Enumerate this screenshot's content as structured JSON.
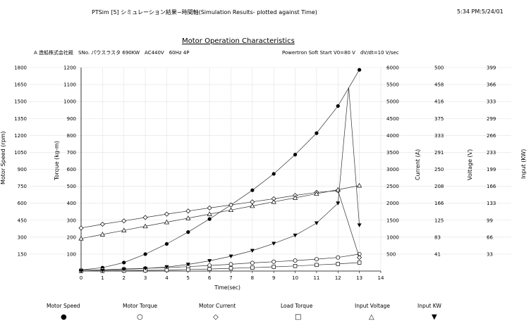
{
  "header": {
    "left": "PTSim [5] シミュレーション結果−時間軸(Simulation Results- plotted against Time)",
    "right": "5:34 PM:5/24/01"
  },
  "chart_data": {
    "type": "line",
    "title": "Motor Operation Characteristics",
    "subtitle_left": "A 造船株式会社殿　SNo. パウスラスタ 690KW　AC440V　60Hz 4P",
    "subtitle_right": "Powertron Soft Start V0=80 V　dV/dt=10 V/sec",
    "xlabel": "Time(sec)",
    "x_ticks": [
      "0",
      "1",
      "2",
      "3",
      "4",
      "5",
      "6",
      "7",
      "8",
      "9",
      "10",
      "11",
      "12",
      "13",
      "14"
    ],
    "xlim": [
      0,
      14
    ],
    "axes": [
      {
        "label": "Motor Speed (rpm)",
        "ticks": [
          "150",
          "300",
          "450",
          "600",
          "750",
          "900",
          "1050",
          "1200",
          "1350",
          "1500",
          "1650",
          "1800"
        ]
      },
      {
        "label": "Torque (kg-m)",
        "ticks": [
          "100",
          "200",
          "300",
          "400",
          "500",
          "600",
          "700",
          "800",
          "900",
          "1000",
          "1100",
          "1200"
        ]
      },
      {
        "label": "Current (A)",
        "ticks": [
          "500",
          "1000",
          "1500",
          "2000",
          "2500",
          "3000",
          "3500",
          "4000",
          "4500",
          "5000",
          "5500",
          "6000"
        ]
      },
      {
        "label": "Voltage (V)",
        "ticks": [
          "41",
          "83",
          "125",
          "166",
          "208",
          "250",
          "291",
          "333",
          "375",
          "416",
          "458",
          "500"
        ]
      },
      {
        "label": "Input (KW)",
        "ticks": [
          "33",
          "66",
          "99",
          "133",
          "166",
          "199",
          "233",
          "266",
          "299",
          "333",
          "366",
          "399"
        ]
      }
    ],
    "series": [
      {
        "name": "Motor Speed",
        "symbol": "●",
        "axis": "Motor Speed (rpm)",
        "x": [
          0,
          1,
          2,
          3,
          4,
          5,
          6,
          7,
          8,
          9,
          10,
          11,
          12,
          13
        ],
        "y": [
          10,
          30,
          75,
          150,
          240,
          345,
          460,
          585,
          715,
          860,
          1030,
          1220,
          1460,
          1780
        ]
      },
      {
        "name": "Motor Torque",
        "symbol": "○",
        "axis": "Torque (kg-m)",
        "x": [
          0,
          1,
          2,
          3,
          4,
          5,
          6,
          7,
          8,
          9,
          10,
          11,
          12,
          13
        ],
        "y": [
          5,
          8,
          12,
          16,
          20,
          26,
          33,
          40,
          48,
          55,
          62,
          70,
          80,
          100
        ]
      },
      {
        "name": "Motor Current",
        "symbol": "◇",
        "axis": "Current (A)",
        "x": [
          0,
          1,
          2,
          3,
          4,
          5,
          6,
          7,
          8,
          9,
          10,
          11,
          12,
          13
        ],
        "y": [
          1270,
          1380,
          1480,
          1580,
          1680,
          1770,
          1860,
          1950,
          2040,
          2130,
          2230,
          2320,
          2370,
          400
        ]
      },
      {
        "name": "Load Torque",
        "symbol": "□",
        "axis": "Torque (kg-m)",
        "x": [
          0,
          1,
          2,
          3,
          4,
          5,
          6,
          7,
          8,
          9,
          10,
          11,
          12,
          13
        ],
        "y": [
          0,
          1,
          2,
          4,
          6,
          9,
          12,
          16,
          20,
          25,
          30,
          36,
          42,
          50
        ]
      },
      {
        "name": "Input Voltage",
        "symbol": "△",
        "axis": "Voltage (V)",
        "x": [
          0,
          1,
          2,
          3,
          4,
          5,
          6,
          7,
          8,
          9,
          10,
          11,
          12,
          13
        ],
        "y": [
          80,
          90,
          100,
          110,
          120,
          130,
          140,
          150,
          160,
          170,
          180,
          190,
          200,
          210
        ]
      },
      {
        "name": "Input KW",
        "symbol": "▼",
        "axis": "Input (KW)",
        "x": [
          0,
          1,
          2,
          3,
          4,
          5,
          6,
          7,
          8,
          9,
          10,
          11,
          12,
          12.5,
          13
        ],
        "y": [
          0,
          1,
          3,
          5,
          8,
          13,
          20,
          29,
          40,
          54,
          70,
          94,
          133,
          360,
          90
        ]
      }
    ],
    "grid": true,
    "legend_position": "bottom"
  },
  "legend": [
    {
      "label": "Motor Speed",
      "symbol": "●"
    },
    {
      "label": "Motor Torque",
      "symbol": "○"
    },
    {
      "label": "Motor Current",
      "symbol": "◇"
    },
    {
      "label": "Load Torque",
      "symbol": "□"
    },
    {
      "label": "Input Voltage",
      "symbol": "△"
    },
    {
      "label": "Input KW",
      "symbol": "▼"
    }
  ]
}
